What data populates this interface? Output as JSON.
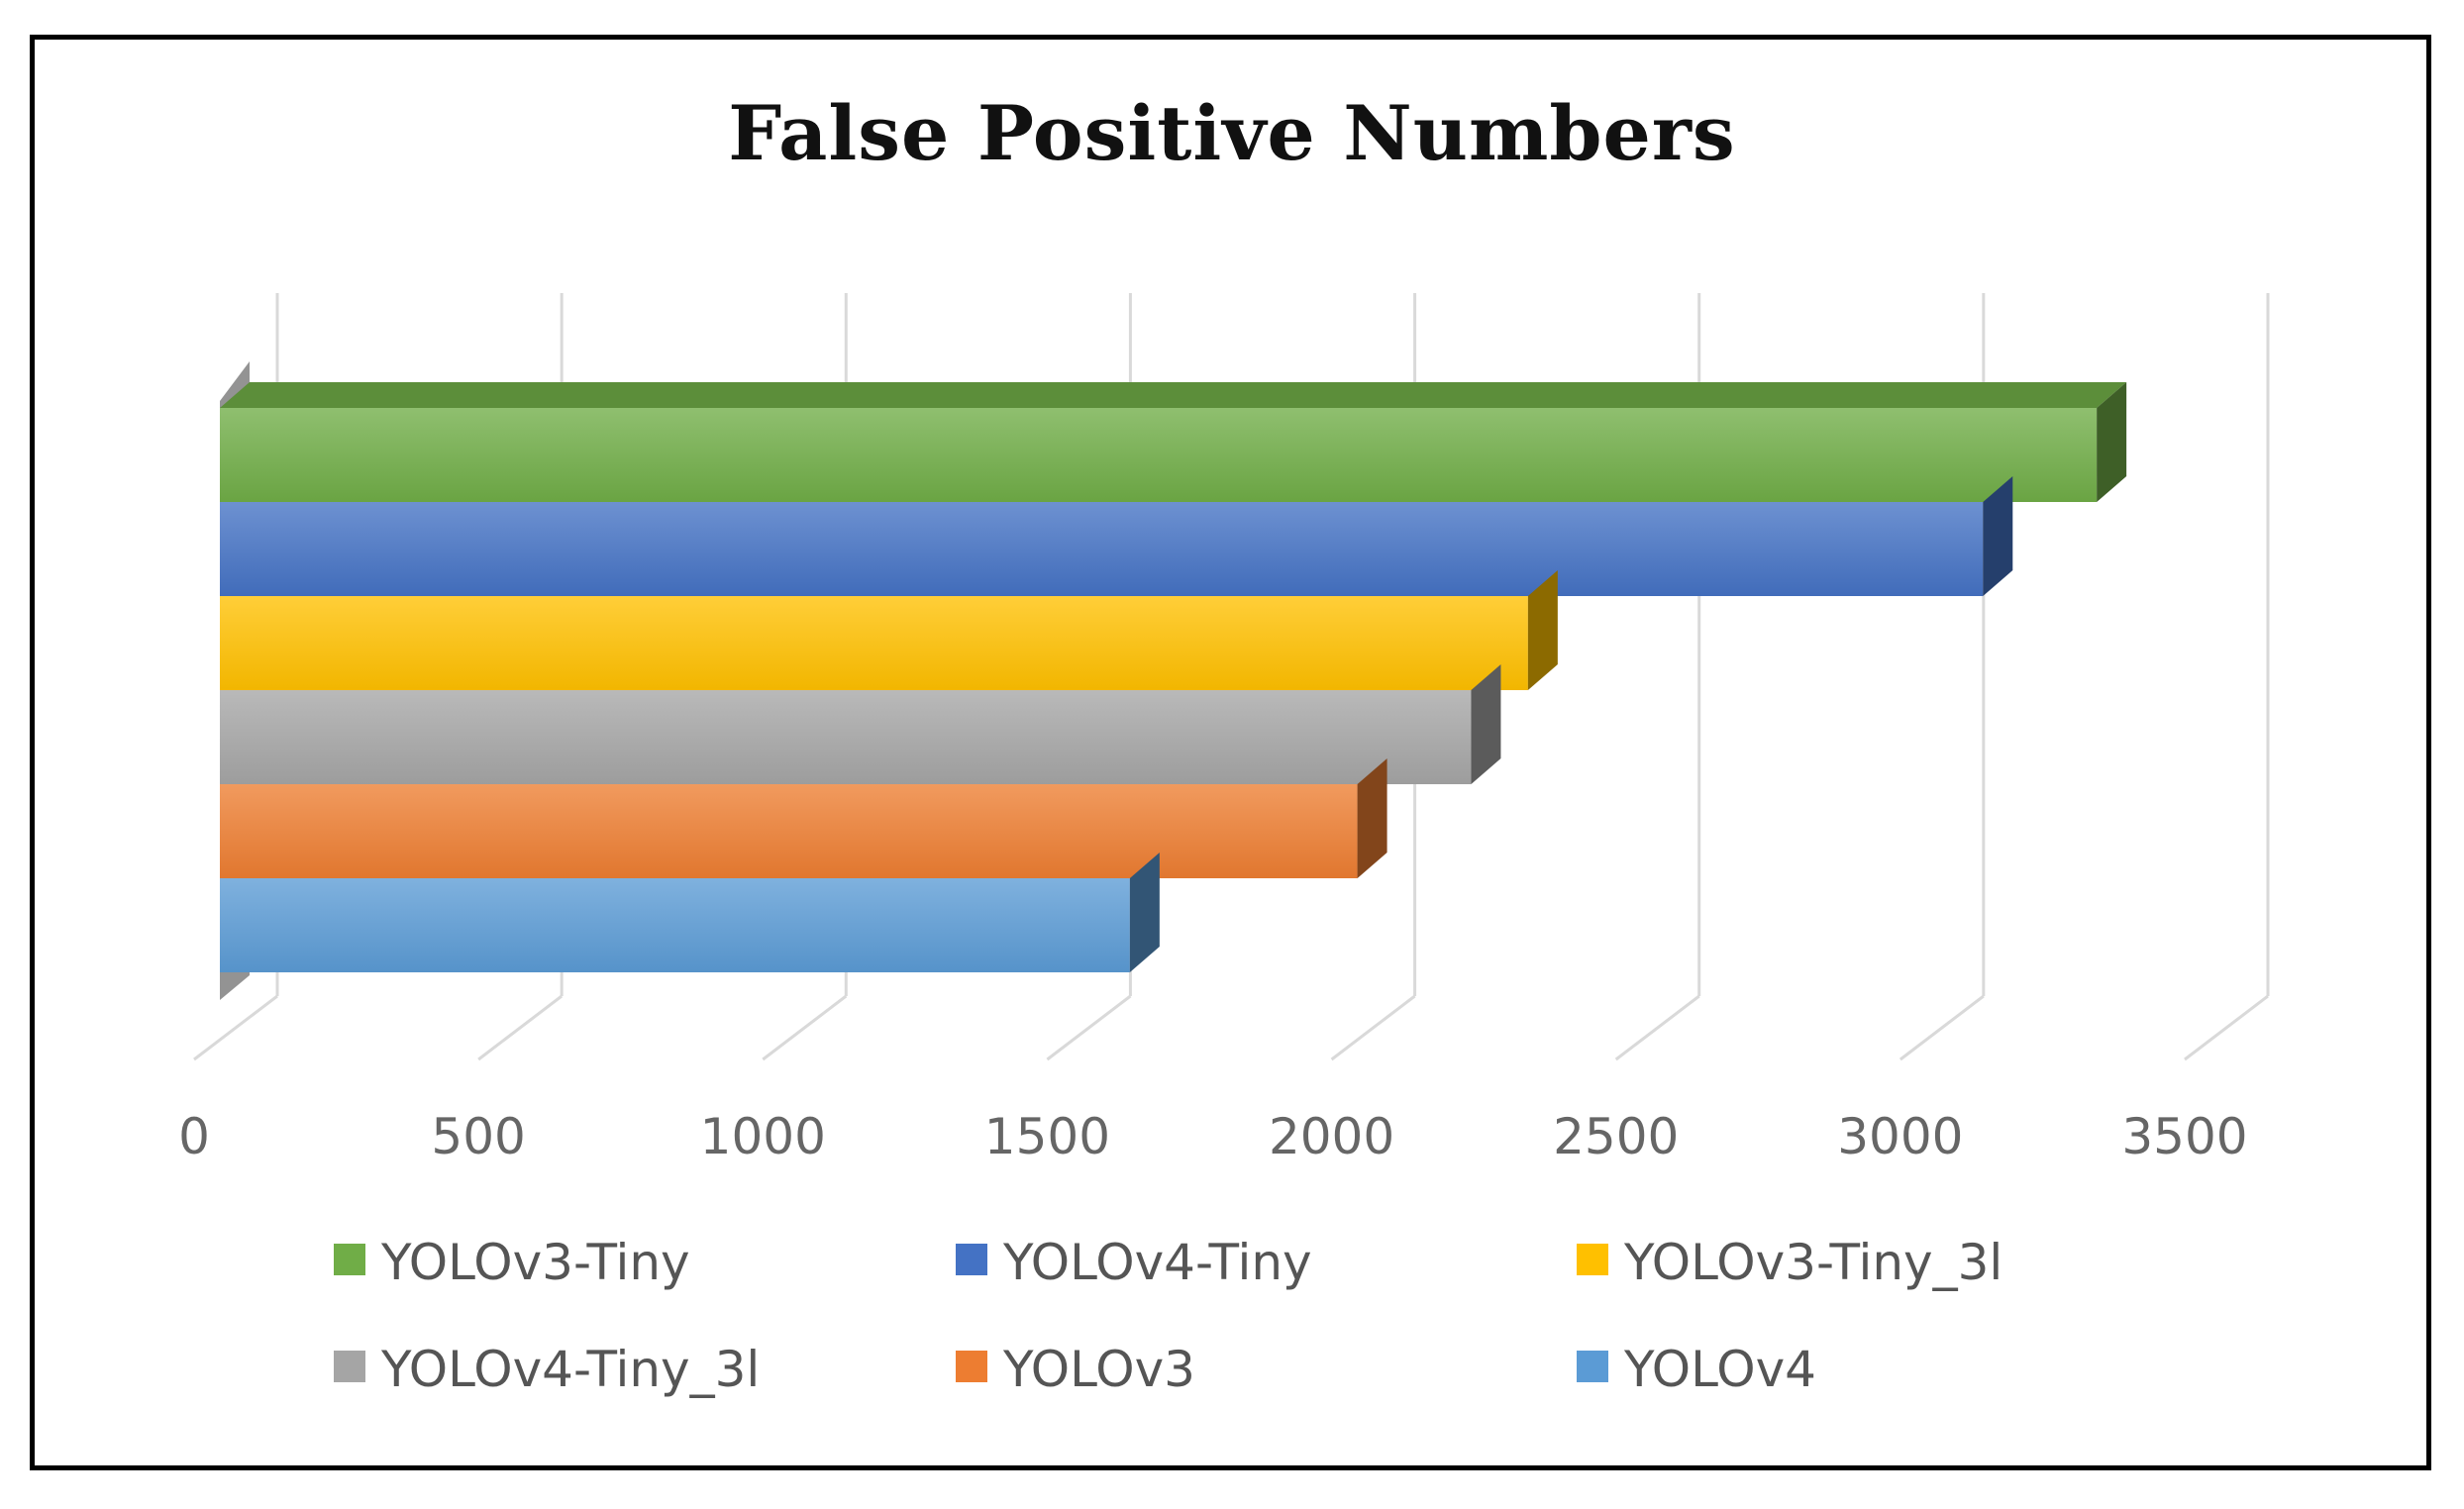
{
  "chart_data": {
    "type": "bar",
    "orientation": "horizontal",
    "style": "3d",
    "title": "False Positive Numbers",
    "xlabel": "",
    "ylabel": "",
    "xlim": [
      0,
      3500
    ],
    "x_ticks": [
      "0",
      "500",
      "1000",
      "1500",
      "2000",
      "2500",
      "3000",
      "3500"
    ],
    "grid": true,
    "legend_position": "bottom",
    "series": [
      {
        "name": "YOLOv3-Tiny",
        "value": 3300,
        "color": "#70AD47"
      },
      {
        "name": "YOLOv4-Tiny",
        "value": 3100,
        "color": "#4472C4"
      },
      {
        "name": "YOLOv3-Tiny_3l",
        "value": 2300,
        "color": "#FFC000"
      },
      {
        "name": "YOLOv4-Tiny_3l",
        "value": 2200,
        "color": "#A5A5A5"
      },
      {
        "name": "YOLOv3",
        "value": 2000,
        "color": "#ED7D31"
      },
      {
        "name": "YOLOv4",
        "value": 1600,
        "color": "#5B9BD5"
      }
    ]
  }
}
